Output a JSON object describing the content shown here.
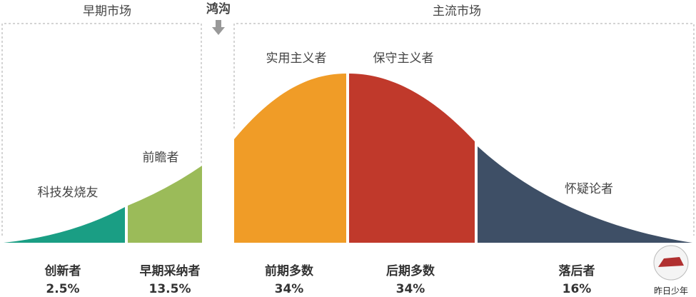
{
  "markets": {
    "early": "早期市场",
    "chasm": "鸿沟",
    "mainstream": "主流市场"
  },
  "segments": [
    {
      "group": "科技发烧友",
      "name": "创新者",
      "share": "2.5%"
    },
    {
      "group": "前瞻者",
      "name": "早期采纳者",
      "share": "13.5%"
    },
    {
      "group": "实用主义者",
      "name": "前期多数",
      "share": "34%"
    },
    {
      "group": "保守主义者",
      "name": "后期多数",
      "share": "34%"
    },
    {
      "group": "怀疑论者",
      "name": "落后者",
      "share": "16%"
    }
  ],
  "logo": "昨日少年"
}
